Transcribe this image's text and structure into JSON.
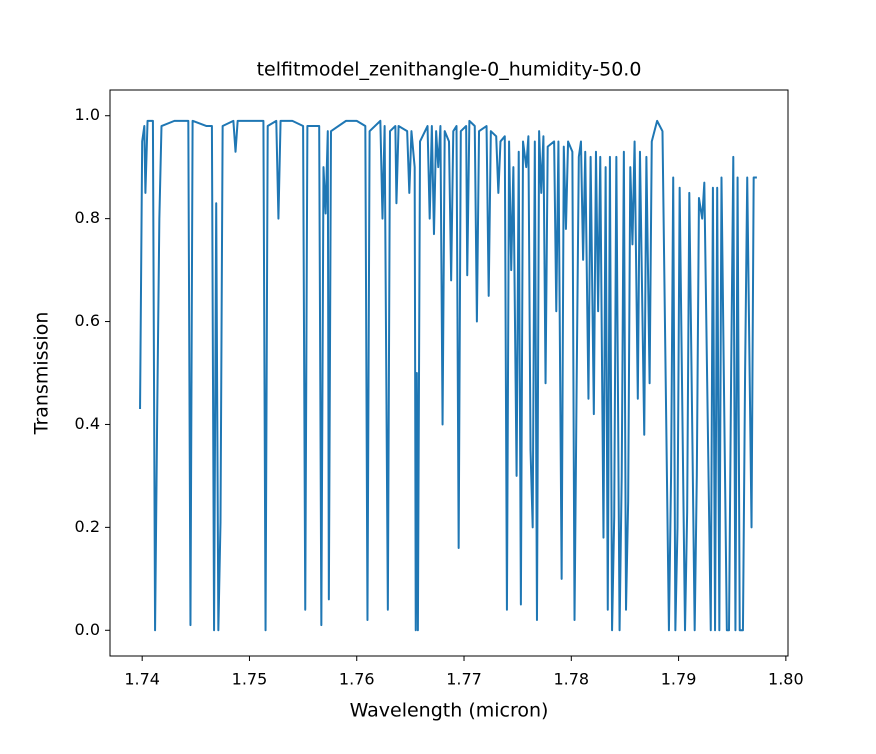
{
  "chart_data": {
    "type": "line",
    "title": "telfitmodel_zenithangle-0_humidity-50.0",
    "x_label": "Wavelength (micron)",
    "y_label": "Transmission",
    "color": "#1f77b4",
    "xlim": [
      1.737,
      1.8002
    ],
    "ylim": [
      -0.05,
      1.05
    ],
    "xticks": [
      1.74,
      1.75,
      1.76,
      1.77,
      1.78,
      1.79,
      {
        "value": 1.8,
        "label": "1.80"
      }
    ],
    "yticks": [
      {
        "value": 0,
        "label": "0.0"
      },
      0.2,
      0.4,
      0.6,
      0.8,
      {
        "value": 1,
        "label": "1.0"
      }
    ],
    "x": [
      1.7398,
      1.74,
      1.7402,
      1.7403,
      1.7405,
      1.741,
      1.7412,
      1.7414,
      1.7416,
      1.7418,
      1.743,
      1.7443,
      1.7445,
      1.7447,
      1.746,
      1.7465,
      1.7467,
      1.7469,
      1.7471,
      1.7473,
      1.7475,
      1.7485,
      1.7487,
      1.7489,
      1.75,
      1.7513,
      1.7515,
      1.7517,
      1.7525,
      1.7527,
      1.7529,
      1.754,
      1.755,
      1.7552,
      1.7554,
      1.7565,
      1.7567,
      1.7569,
      1.7571,
      1.7573,
      1.7574,
      1.7576,
      1.759,
      1.76,
      1.7608,
      1.761,
      1.7612,
      1.7622,
      1.7624,
      1.7626,
      1.7629,
      1.7631,
      1.7636,
      1.7637,
      1.7639,
      1.7647,
      1.7649,
      1.7651,
      1.7654,
      1.7655,
      1.7656,
      1.7657,
      1.7659,
      1.7666,
      1.7668,
      1.767,
      1.7672,
      1.7674,
      1.7676,
      1.7678,
      1.768,
      1.7682,
      1.7686,
      1.7688,
      1.769,
      1.7693,
      1.7695,
      1.7697,
      1.7702,
      1.7703,
      1.7705,
      1.771,
      1.7712,
      1.7714,
      1.7721,
      1.7723,
      1.7725,
      1.773,
      1.7732,
      1.7734,
      1.7738,
      1.774,
      1.7742,
      1.7744,
      1.7746,
      1.7749,
      1.7751,
      1.7753,
      1.7755,
      1.7758,
      1.776,
      1.7762,
      1.7764,
      1.7766,
      1.7768,
      1.777,
      1.7772,
      1.7774,
      1.7776,
      1.7778,
      1.7784,
      1.7786,
      1.7788,
      1.7791,
      1.7793,
      1.7795,
      1.7797,
      1.7801,
      1.7803,
      1.7805,
      1.7807,
      1.7809,
      1.7811,
      1.7813,
      1.7816,
      1.7818,
      1.7821,
      1.7823,
      1.7825,
      1.7827,
      1.783,
      1.7832,
      1.7834,
      1.7836,
      1.7838,
      1.784,
      1.7842,
      1.7845,
      1.7847,
      1.7849,
      1.7851,
      1.7853,
      1.7855,
      1.7857,
      1.7859,
      1.7862,
      1.7864,
      1.7868,
      1.787,
      1.7873,
      1.7875,
      1.788,
      1.7885,
      1.7891,
      1.7893,
      1.7895,
      1.7897,
      1.7899,
      1.7901,
      1.7906,
      1.7908,
      1.791,
      1.7913,
      1.7915,
      1.7917,
      1.7919,
      1.7922,
      1.7924,
      1.793,
      1.7932,
      1.7934,
      1.7936,
      1.7938,
      1.794,
      1.7945,
      1.7947,
      1.7949,
      1.7951,
      1.7953,
      1.7955,
      1.7957,
      1.796,
      1.7962,
      1.7964,
      1.7968,
      1.797,
      1.7973
    ],
    "values": [
      0.43,
      0.95,
      0.98,
      0.85,
      0.99,
      0.99,
      0.0,
      0.42,
      0.8,
      0.98,
      0.99,
      0.99,
      0.01,
      0.99,
      0.98,
      0.98,
      0.0,
      0.83,
      0.0,
      0.21,
      0.98,
      0.99,
      0.93,
      0.99,
      0.99,
      0.99,
      0.0,
      0.98,
      0.99,
      0.8,
      0.99,
      0.99,
      0.98,
      0.04,
      0.98,
      0.98,
      0.01,
      0.9,
      0.81,
      0.97,
      0.06,
      0.97,
      0.99,
      0.99,
      0.98,
      0.02,
      0.97,
      0.99,
      0.8,
      0.98,
      0.04,
      0.97,
      0.98,
      0.83,
      0.98,
      0.97,
      0.85,
      0.97,
      0.9,
      0.0,
      0.5,
      0.0,
      0.95,
      0.98,
      0.8,
      0.98,
      0.77,
      0.97,
      0.9,
      0.98,
      0.4,
      0.97,
      0.95,
      0.68,
      0.97,
      0.98,
      0.16,
      0.97,
      0.98,
      0.69,
      0.99,
      0.98,
      0.6,
      0.97,
      0.98,
      0.65,
      0.97,
      0.96,
      0.85,
      0.95,
      0.96,
      0.04,
      0.95,
      0.7,
      0.9,
      0.3,
      0.93,
      0.05,
      0.95,
      0.9,
      0.96,
      0.35,
      0.2,
      0.95,
      0.02,
      0.97,
      0.85,
      0.96,
      0.48,
      0.94,
      0.95,
      0.62,
      0.95,
      0.1,
      0.94,
      0.78,
      0.95,
      0.93,
      0.02,
      0.48,
      0.92,
      0.95,
      0.72,
      0.93,
      0.45,
      0.92,
      0.42,
      0.93,
      0.62,
      0.92,
      0.18,
      0.9,
      0.04,
      0.92,
      0.0,
      0.22,
      0.92,
      0.0,
      0.3,
      0.93,
      0.04,
      0.25,
      0.9,
      0.75,
      0.95,
      0.45,
      0.93,
      0.38,
      0.92,
      0.48,
      0.95,
      0.99,
      0.97,
      0.0,
      0.3,
      0.88,
      0.0,
      0.2,
      0.86,
      0.0,
      0.23,
      0.85,
      0.35,
      0.0,
      0.3,
      0.84,
      0.8,
      0.87,
      0.0,
      0.86,
      0.0,
      0.86,
      0.0,
      0.88,
      0.0,
      0.0,
      0.5,
      0.92,
      0.0,
      0.88,
      0.0,
      0.0,
      0.5,
      0.88,
      0.2,
      0.88,
      0.88
    ]
  }
}
